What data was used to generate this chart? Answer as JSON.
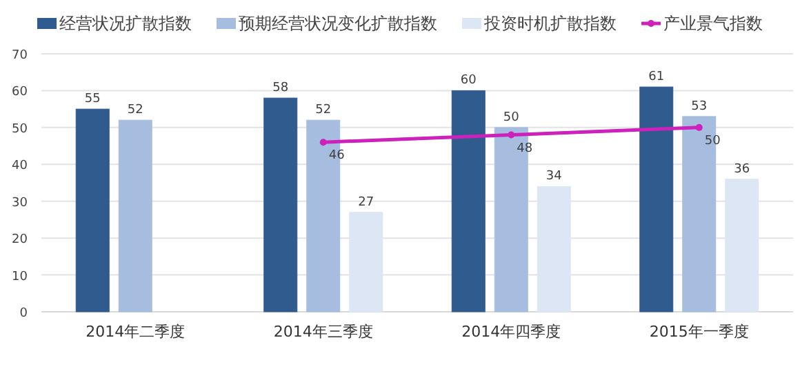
{
  "chart_data": {
    "type": "bar",
    "categories": [
      "2014年二季度",
      "2014年三季度",
      "2014年四季度",
      "2015年一季度"
    ],
    "series": [
      {
        "name": "经营状况扩散指数",
        "color": "#2f5b8f",
        "values": [
          55,
          58,
          60,
          61
        ]
      },
      {
        "name": "预期经营状况变化扩散指数",
        "color": "#a6bde0",
        "values": [
          52,
          52,
          50,
          53
        ]
      },
      {
        "name": "投资时机扩散指数",
        "color": "#dde6f4",
        "values": [
          null,
          27,
          34,
          36
        ]
      },
      {
        "name": "产业景气指数",
        "type": "line",
        "color": "#cc22bb",
        "values": [
          null,
          46,
          48,
          50
        ]
      }
    ],
    "ylim": [
      0,
      70
    ],
    "yticks": [
      0,
      10,
      20,
      30,
      40,
      50,
      60,
      70
    ],
    "grid": "y",
    "legend": "top",
    "data_labels": true,
    "marker": "circle",
    "line_style": "solid"
  }
}
